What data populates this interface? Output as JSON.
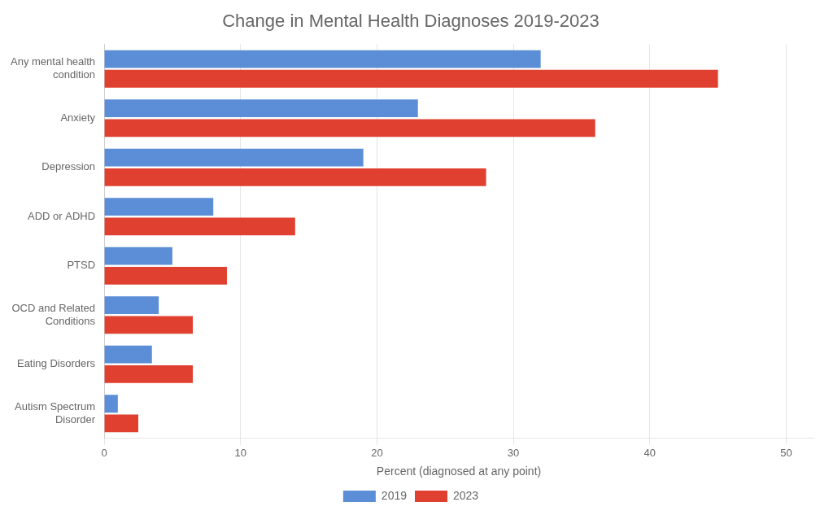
{
  "chart_data": {
    "type": "bar",
    "orientation": "horizontal",
    "title": "Change in Mental Health Diagnoses 2019-2023",
    "categories": [
      "Any mental health\ncondition",
      "Anxiety",
      "Depression",
      "ADD or ADHD",
      "PTSD",
      "OCD and Related\nConditions",
      "Eating Disorders",
      "Autism Spectrum\nDisorder"
    ],
    "series": [
      {
        "name": "2019",
        "color": "#5B8ED6",
        "values": [
          32,
          23,
          19,
          8,
          5,
          4,
          3.5,
          1
        ]
      },
      {
        "name": "2023",
        "color": "#E04030",
        "values": [
          45,
          36,
          28,
          14,
          9,
          6.5,
          6.5,
          2.5
        ]
      }
    ],
    "xlabel": "Percent (diagnosed at any point)",
    "xlim": [
      0,
      52
    ],
    "xticks": [
      0,
      10,
      20,
      30,
      40,
      50
    ],
    "grid": true,
    "legend": "bottom"
  }
}
